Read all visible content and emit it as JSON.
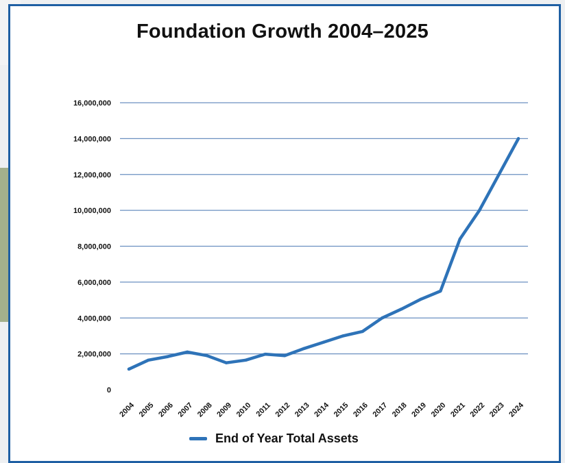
{
  "chart_data": {
    "type": "line",
    "title": "Foundation Growth 2004–2025",
    "xlabel": "",
    "ylabel": "",
    "ylim": [
      0,
      16000000
    ],
    "yticks": [
      0,
      2000000,
      4000000,
      6000000,
      8000000,
      10000000,
      12000000,
      14000000,
      16000000
    ],
    "ytick_labels": [
      "0",
      "2,000,000",
      "4,000,000",
      "6,000,000",
      "8,000,000",
      "10,000,000",
      "12,000,000",
      "14,000,000",
      "16,000,000"
    ],
    "categories": [
      "2004",
      "2005",
      "2006",
      "2007",
      "2008",
      "2009",
      "2010",
      "2011",
      "2012",
      "2013",
      "2014",
      "2015",
      "2016",
      "2017",
      "2018",
      "2019",
      "2020",
      "2021",
      "2022",
      "2023",
      "2024"
    ],
    "series": [
      {
        "name": "End of Year Total Assets",
        "color": "#2e73b8",
        "values": [
          1150000,
          1650000,
          1850000,
          2100000,
          1900000,
          1500000,
          1650000,
          1980000,
          1900000,
          2300000,
          2650000,
          3000000,
          3250000,
          4000000,
          4500000,
          5050000,
          5500000,
          8400000,
          10000000,
          12000000,
          14000000
        ]
      }
    ],
    "grid": true,
    "legend": "bottom",
    "gridline_color": "#6a8fc0"
  }
}
